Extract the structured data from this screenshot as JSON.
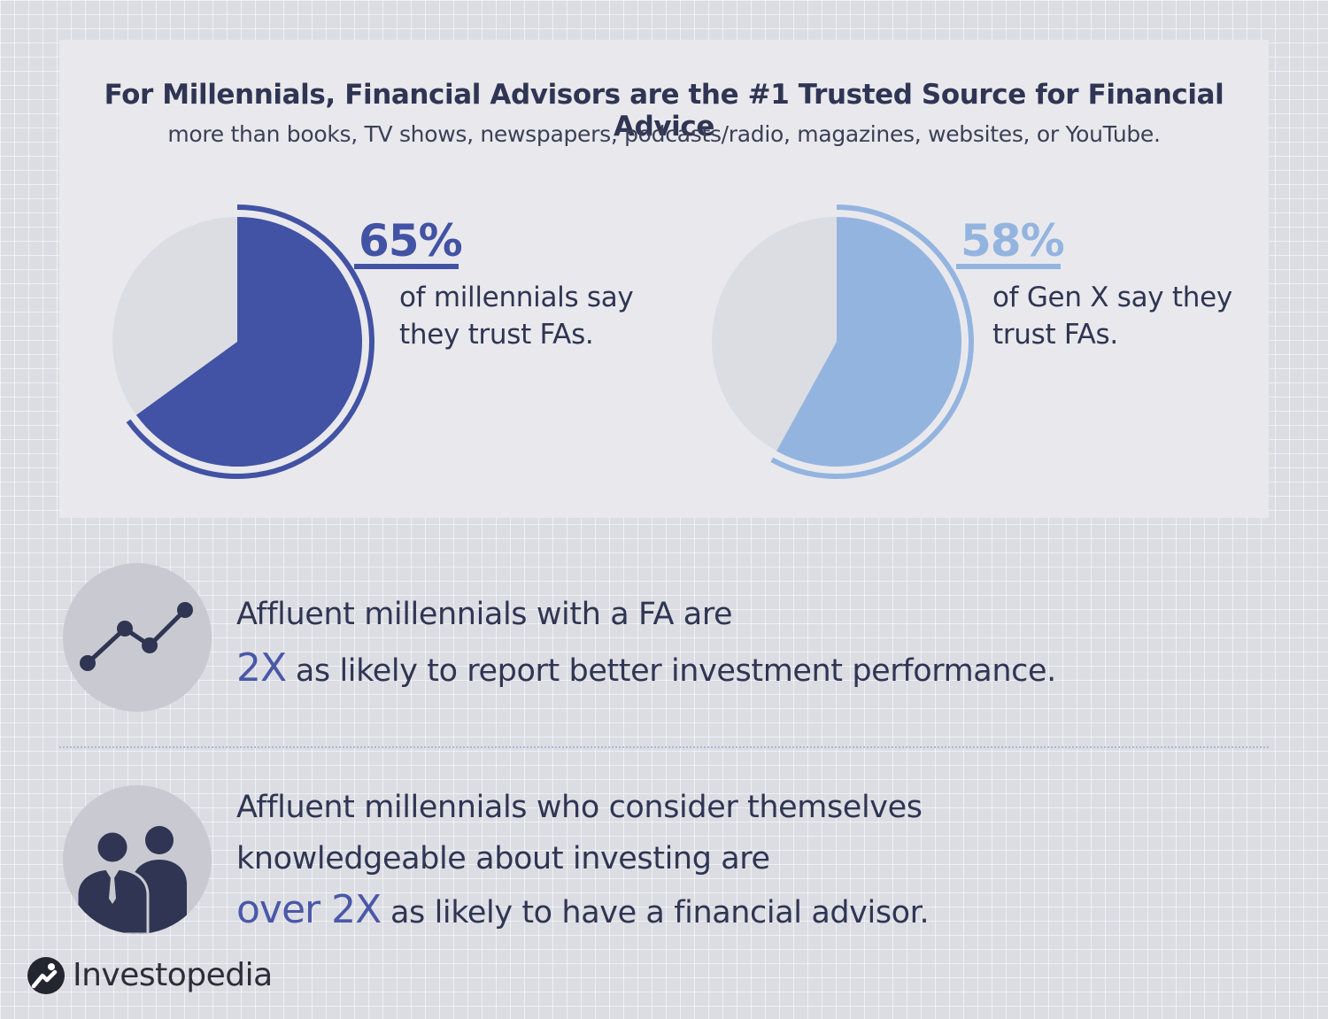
{
  "header": {
    "title": "For Millennials, Financial Advisors are the #1 Trusted Source for Financial Advice",
    "subtitle": "more than books, TV shows, newspapers, podcasts/radio, magazines, websites, or YouTube."
  },
  "chart_data": [
    {
      "type": "pie",
      "series_label": "65%",
      "value": 65,
      "description_line1": "of millennials say",
      "description_line2": "they trust FAs.",
      "color": "#4252a4",
      "remainder_color": "#dcdde2"
    },
    {
      "type": "pie",
      "series_label": "58%",
      "value": 58,
      "description_line1": "of Gen X say they",
      "description_line2": "trust FAs.",
      "color": "#94b4e0",
      "remainder_color": "#dcdde2"
    }
  ],
  "stats": [
    {
      "icon": "line-graph-icon",
      "line1": "Affluent millennials with a FA are",
      "highlight": "2X",
      "line2_rest": "as likely to report better investment performance."
    },
    {
      "icon": "two-people-icon",
      "line1": "Affluent millennials who consider themselves",
      "line2": "knowledgeable about investing are",
      "highlight": "over 2X",
      "line3_rest": "as likely to have a financial advisor."
    }
  ],
  "colors": {
    "accent": "#4a58a8",
    "text": "#2f3553",
    "icon": "#2f3553"
  },
  "logo": {
    "text": "Investopedia",
    "icon": "investopedia-logo-icon"
  }
}
